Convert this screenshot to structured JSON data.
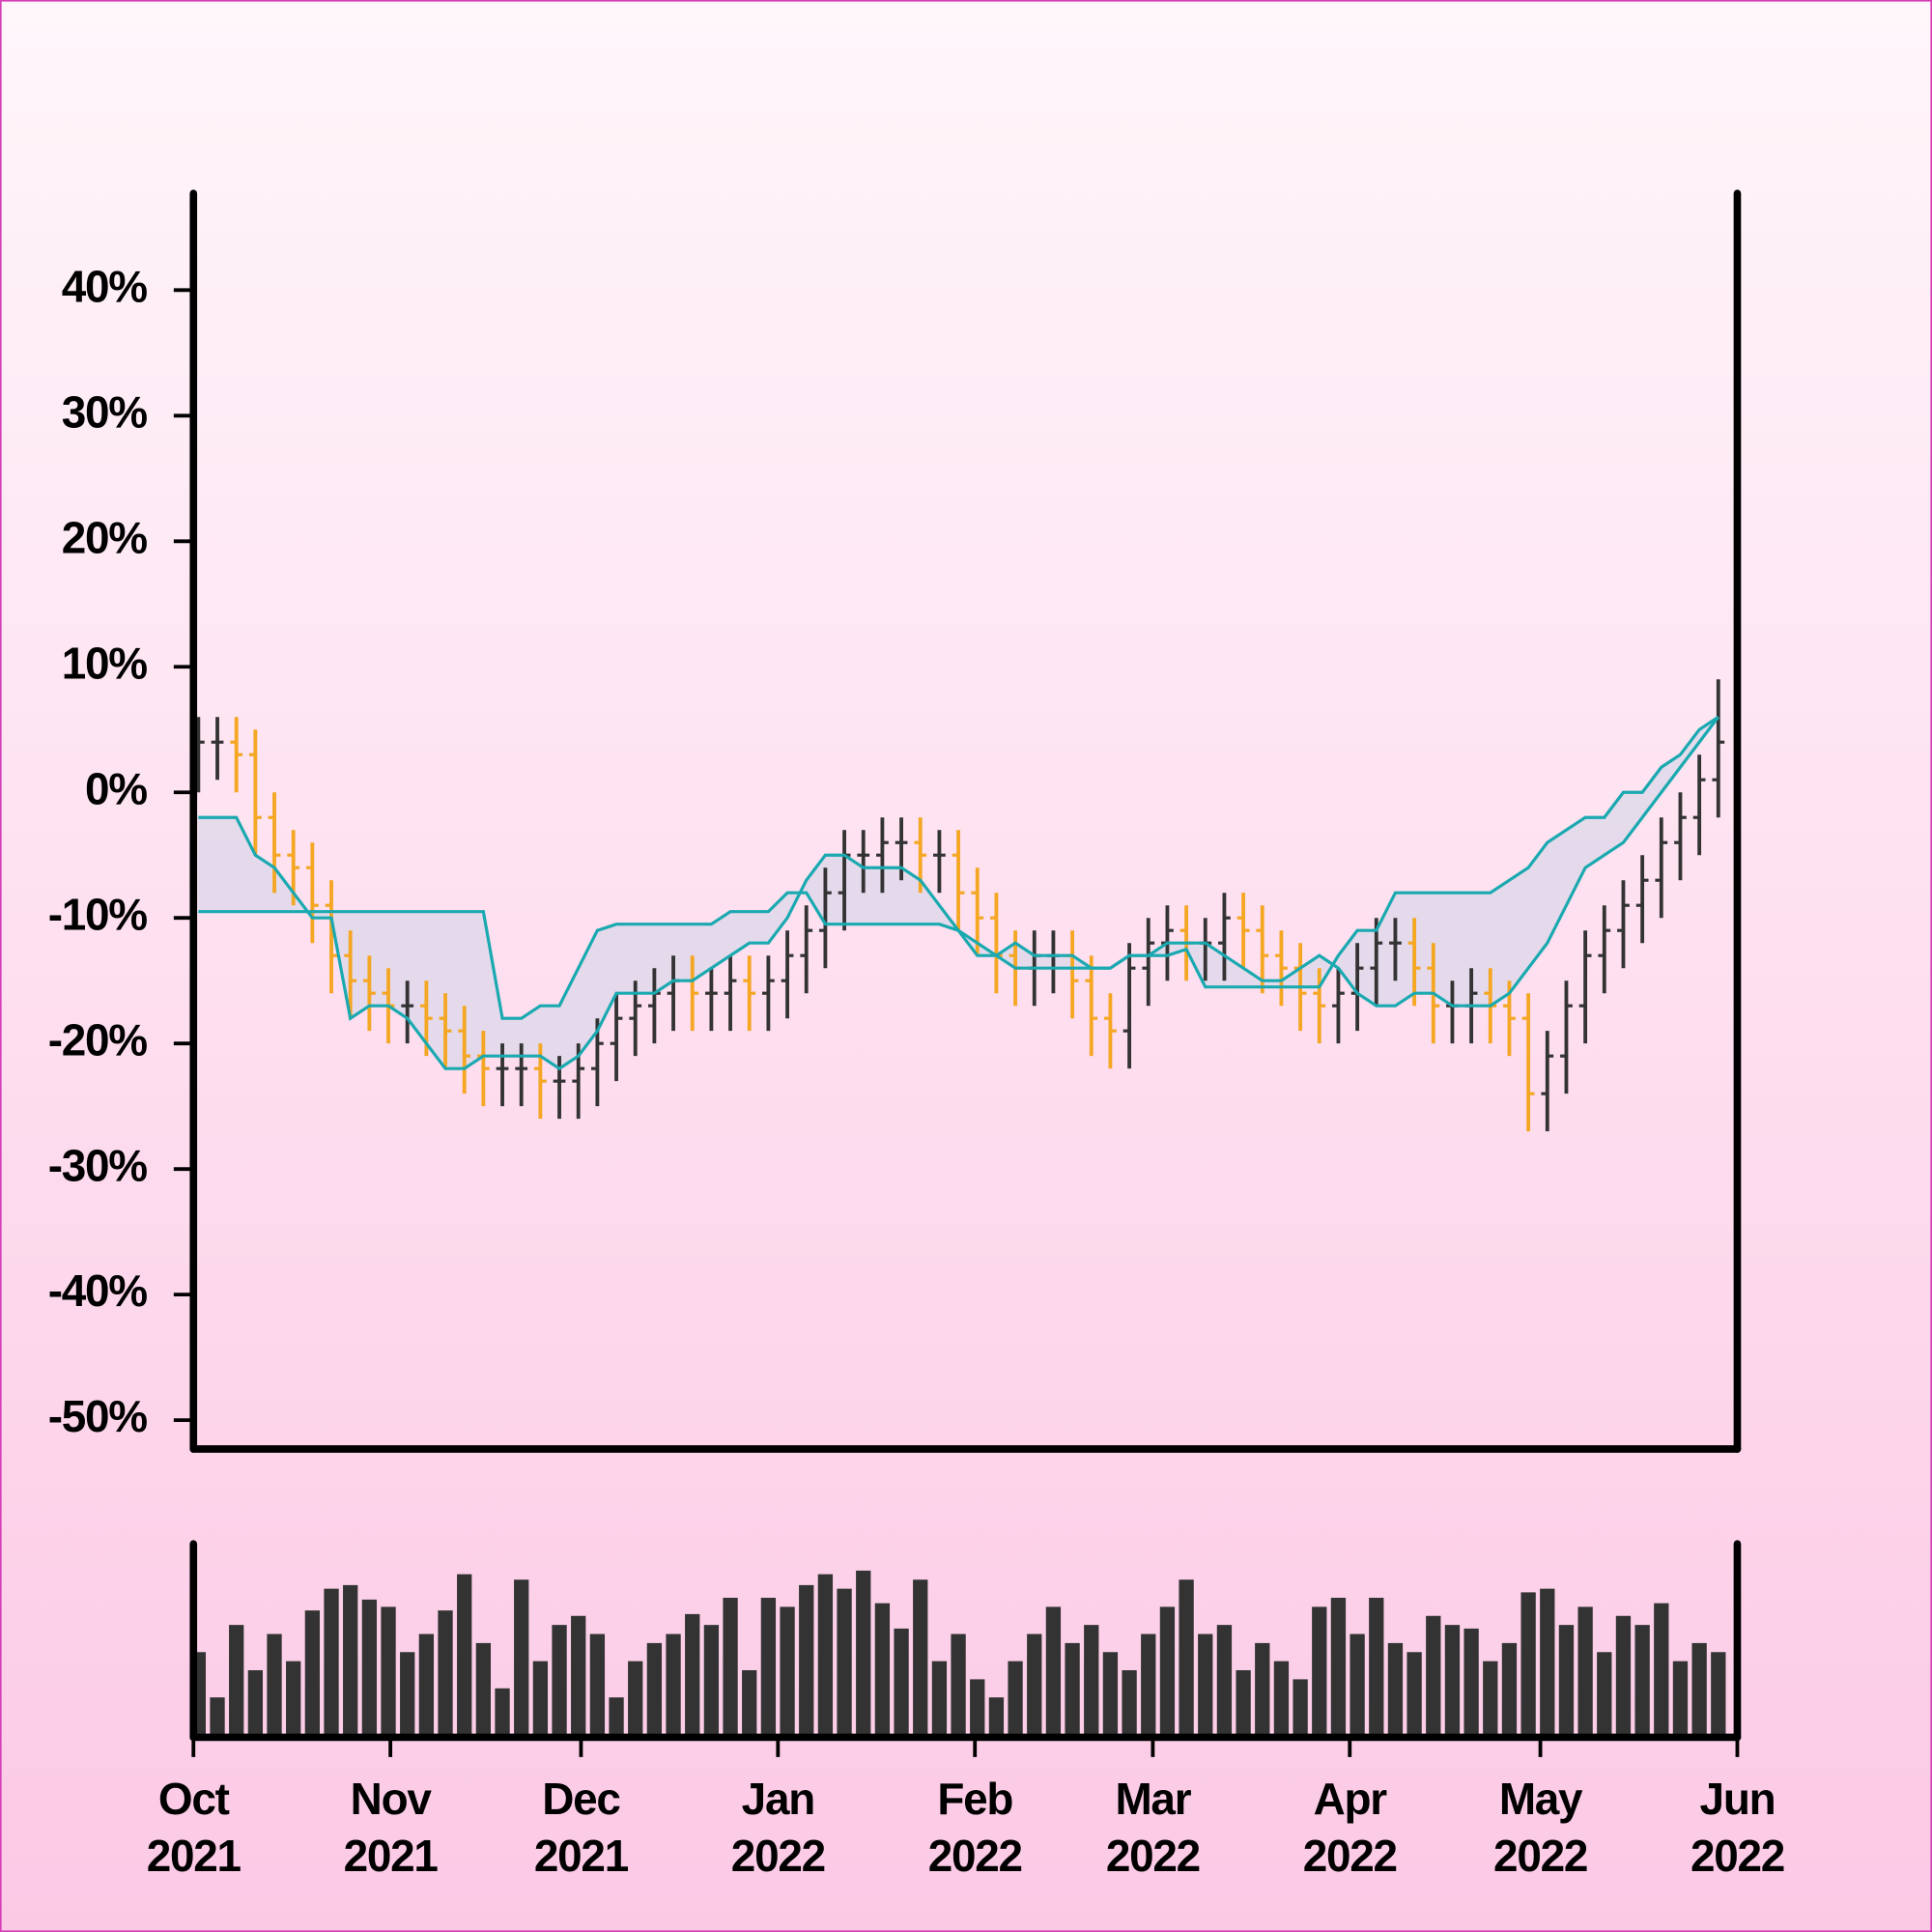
{
  "chart_data": {
    "type": "ohlc",
    "up_color": "#333333",
    "down_color": "#f5a623",
    "x": [
      0,
      3,
      6,
      9,
      12,
      15,
      18,
      21,
      24,
      27,
      30,
      33,
      36,
      39,
      42,
      45,
      48,
      51,
      54,
      57,
      60,
      63,
      66,
      69,
      72,
      75,
      78,
      81,
      84,
      87,
      90,
      93,
      96,
      99,
      102,
      105,
      108,
      111,
      114,
      117,
      120,
      123,
      126,
      129,
      132,
      135,
      138,
      141,
      144,
      147,
      150,
      153,
      156,
      159,
      162,
      165,
      168,
      171,
      174,
      177,
      180,
      183,
      186,
      189,
      192,
      195,
      198,
      201,
      204,
      207,
      210,
      213,
      216,
      219,
      222,
      225,
      228,
      231,
      234,
      237,
      240
    ],
    "open": [
      3,
      4,
      4,
      3,
      -2,
      -5,
      -6,
      -9,
      -13,
      -15,
      -16,
      -17,
      -17,
      -18,
      -19,
      -21,
      -22,
      -22,
      -22,
      -23,
      -23,
      -22,
      -20,
      -18,
      -17,
      -16,
      -15,
      -16,
      -16,
      -15,
      -16,
      -15,
      -13,
      -11,
      -8,
      -5,
      -5,
      -4,
      -4,
      -5,
      -5,
      -8,
      -10,
      -13,
      -14,
      -13,
      -13,
      -15,
      -18,
      -19,
      -14,
      -12,
      -11,
      -12,
      -12,
      -10,
      -11,
      -13,
      -14,
      -16,
      -17,
      -16,
      -14,
      -12,
      -12,
      -14,
      -17,
      -17,
      -16,
      -17,
      -18,
      -24,
      -21,
      -17,
      -13,
      -11,
      -9,
      -7,
      -4,
      -2,
      1
    ],
    "high": [
      6,
      6,
      6,
      5,
      0,
      -3,
      -4,
      -7,
      -11,
      -13,
      -14,
      -15,
      -15,
      -16,
      -17,
      -19,
      -20,
      -20,
      -20,
      -21,
      -20,
      -18,
      -16,
      -15,
      -14,
      -13,
      -13,
      -14,
      -13,
      -13,
      -13,
      -11,
      -9,
      -6,
      -3,
      -3,
      -2,
      -2,
      -2,
      -3,
      -3,
      -6,
      -8,
      -11,
      -11,
      -11,
      -11,
      -13,
      -16,
      -12,
      -10,
      -9,
      -9,
      -10,
      -8,
      -8,
      -9,
      -11,
      -12,
      -14,
      -14,
      -12,
      -10,
      -10,
      -10,
      -12,
      -15,
      -14,
      -14,
      -15,
      -16,
      -19,
      -15,
      -11,
      -9,
      -7,
      -5,
      -2,
      0,
      3,
      9
    ],
    "low": [
      0,
      1,
      0,
      -5,
      -8,
      -9,
      -12,
      -16,
      -18,
      -19,
      -20,
      -20,
      -21,
      -22,
      -24,
      -25,
      -25,
      -25,
      -26,
      -26,
      -26,
      -25,
      -23,
      -21,
      -20,
      -19,
      -19,
      -19,
      -19,
      -19,
      -19,
      -18,
      -16,
      -14,
      -11,
      -8,
      -8,
      -7,
      -8,
      -8,
      -11,
      -13,
      -16,
      -17,
      -17,
      -16,
      -18,
      -21,
      -22,
      -22,
      -17,
      -15,
      -15,
      -15,
      -15,
      -14,
      -16,
      -17,
      -19,
      -20,
      -20,
      -19,
      -17,
      -15,
      -17,
      -20,
      -20,
      -20,
      -20,
      -21,
      -27,
      -27,
      -24,
      -20,
      -16,
      -14,
      -12,
      -10,
      -7,
      -5,
      -2
    ],
    "close": [
      4,
      4,
      3,
      -2,
      -5,
      -6,
      -9,
      -13,
      -15,
      -16,
      -17,
      -17,
      -18,
      -19,
      -21,
      -22,
      -22,
      -22,
      -23,
      -23,
      -22,
      -20,
      -18,
      -17,
      -16,
      -15,
      -16,
      -16,
      -15,
      -16,
      -15,
      -13,
      -11,
      -8,
      -5,
      -5,
      -4,
      -4,
      -5,
      -5,
      -8,
      -10,
      -13,
      -14,
      -13,
      -13,
      -15,
      -18,
      -19,
      -14,
      -12,
      -11,
      -12,
      -12,
      -10,
      -11,
      -13,
      -14,
      -16,
      -17,
      -16,
      -14,
      -12,
      -12,
      -14,
      -17,
      -17,
      -16,
      -17,
      -18,
      -24,
      -21,
      -17,
      -13,
      -11,
      -9,
      -7,
      -4,
      -2,
      1,
      4
    ],
    "cloud": {
      "fill_color": "#ddd8ea",
      "series": [
        {
          "color": "#1aa9b0",
          "values": [
            -2,
            -2,
            -2,
            -5,
            -6,
            -8,
            -10,
            -10,
            -18,
            -17,
            -17,
            -18,
            -20,
            -22,
            -22,
            -21,
            -21,
            -21,
            -21,
            -22,
            -21,
            -19,
            -16,
            -16,
            -16,
            -15,
            -15,
            -14,
            -13,
            -12,
            -12,
            -10,
            -7,
            -5,
            -5,
            -6,
            -6,
            -6,
            -7,
            -9,
            -11,
            -13,
            -13,
            -12,
            -13,
            -13,
            -13,
            -14,
            -14,
            -13,
            -13,
            -12,
            -12,
            -12,
            -13,
            -14,
            -15,
            -15,
            -14,
            -13,
            -14,
            -16,
            -17,
            -17,
            -16,
            -16,
            -17,
            -17,
            -17,
            -16,
            -14,
            -12,
            -9,
            -6,
            -5,
            -4,
            -2,
            0,
            2,
            4,
            6
          ]
        },
        {
          "color": "#1aa9b0",
          "values": [
            -9.5,
            -9.5,
            -9.5,
            -9.5,
            -9.5,
            -9.5,
            -9.5,
            -9.5,
            -9.5,
            -9.5,
            -9.5,
            -9.5,
            -9.5,
            -9.5,
            -9.5,
            -9.5,
            -18,
            -18,
            -17,
            -17,
            -14,
            -11,
            -10.5,
            -10.5,
            -10.5,
            -10.5,
            -10.5,
            -10.5,
            -9.5,
            -9.5,
            -9.5,
            -8,
            -8,
            -10.5,
            -10.5,
            -10.5,
            -10.5,
            -10.5,
            -10.5,
            -10.5,
            -11,
            -12,
            -13,
            -14,
            -14,
            -14,
            -14,
            -14,
            -14,
            -13,
            -13,
            -13,
            -12.5,
            -15.5,
            -15.5,
            -15.5,
            -15.5,
            -15.5,
            -15.5,
            -15.5,
            -13,
            -11,
            -11,
            -8,
            -8,
            -8,
            -8,
            -8,
            -8,
            -7,
            -6,
            -4,
            -3,
            -2,
            -2,
            0,
            0,
            2,
            3,
            5,
            6
          ]
        }
      ]
    },
    "volume": {
      "color": "#333333",
      "ylim": [
        0,
        100
      ],
      "values": [
        45,
        20,
        60,
        35,
        55,
        40,
        68,
        80,
        82,
        74,
        70,
        45,
        55,
        68,
        88,
        50,
        25,
        85,
        40,
        60,
        65,
        55,
        20,
        40,
        50,
        55,
        66,
        60,
        75,
        35,
        75,
        70,
        82,
        88,
        80,
        90,
        72,
        58,
        85,
        40,
        55,
        30,
        20,
        40,
        55,
        70,
        50,
        60,
        45,
        35,
        55,
        70,
        85,
        55,
        60,
        35,
        50,
        40,
        30,
        70,
        75,
        55,
        75,
        50,
        45,
        65,
        60,
        58,
        40,
        50,
        78,
        80,
        60,
        70,
        45,
        65,
        60,
        72,
        40,
        50,
        45
      ]
    },
    "xlim": [
      0,
      243
    ],
    "ylim": [
      -52.3,
      47.7
    ],
    "yticks": [
      {
        "value": 40,
        "label": "40%"
      },
      {
        "value": 30,
        "label": "30%"
      },
      {
        "value": 20,
        "label": "20%"
      },
      {
        "value": 10,
        "label": "10%"
      },
      {
        "value": 0,
        "label": "0%"
      },
      {
        "value": -10,
        "label": "-10%"
      },
      {
        "value": -20,
        "label": "-20%"
      },
      {
        "value": -30,
        "label": "-30%"
      },
      {
        "value": -40,
        "label": "-40%"
      },
      {
        "value": -50,
        "label": "-50%"
      }
    ],
    "xticks": [
      {
        "value": 0,
        "label": [
          "Oct",
          "2021"
        ]
      },
      {
        "value": 31,
        "label": [
          "Nov",
          "2021"
        ]
      },
      {
        "value": 61,
        "label": [
          "Dec",
          "2021"
        ]
      },
      {
        "value": 92,
        "label": [
          "Jan",
          "2022"
        ]
      },
      {
        "value": 123,
        "label": [
          "Feb",
          "2022"
        ]
      },
      {
        "value": 151,
        "label": [
          "Mar",
          "2022"
        ]
      },
      {
        "value": 182,
        "label": [
          "Apr",
          "2022"
        ]
      },
      {
        "value": 212,
        "label": [
          "May",
          "2022"
        ]
      },
      {
        "value": 243,
        "label": [
          "Jun",
          "2022"
        ]
      }
    ]
  }
}
